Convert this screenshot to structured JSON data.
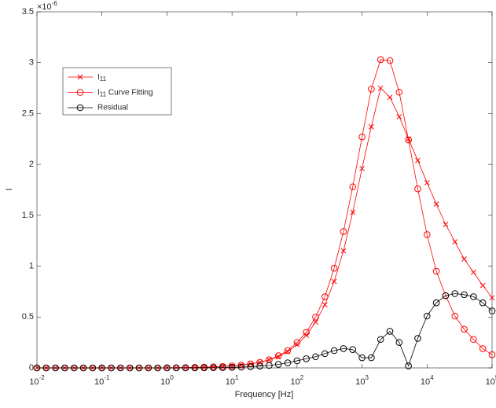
{
  "chart_data": {
    "type": "line",
    "xlabel": "Frequency [Hz]",
    "ylabel": "I",
    "y_multiplier": "×10",
    "y_multiplier_exponent": "-6",
    "xscale": "log",
    "xlim": [
      0.01,
      100000
    ],
    "xticks": [
      {
        "value": 0.01,
        "label": "10^-2"
      },
      {
        "value": 0.1,
        "label": "10^-1"
      },
      {
        "value": 1,
        "label": "10^0"
      },
      {
        "value": 10,
        "label": "10^1"
      },
      {
        "value": 100,
        "label": "10^2"
      },
      {
        "value": 1000,
        "label": "10^3"
      },
      {
        "value": 10000,
        "label": "10^4"
      },
      {
        "value": 100000,
        "label": "10^5"
      }
    ],
    "ylim": [
      0,
      3.5
    ],
    "yticks": [
      0,
      0.5,
      1,
      1.5,
      2,
      2.5,
      3,
      3.5
    ],
    "legend": "upper left",
    "x": [
      0.01,
      0.01389,
      0.01931,
      0.02683,
      0.03728,
      0.05179,
      0.07197,
      0.1,
      0.1389,
      0.1931,
      0.2683,
      0.3728,
      0.5179,
      0.7197,
      1,
      1.389,
      1.931,
      2.683,
      3.728,
      5.179,
      7.197,
      10,
      13.89,
      19.31,
      26.83,
      37.28,
      51.79,
      71.97,
      100,
      138.9,
      193.1,
      268.3,
      372.8,
      517.9,
      719.7,
      1000,
      1389,
      1931,
      2683,
      3728,
      5179,
      7197,
      10000,
      13890,
      19310,
      26830,
      37280,
      51790,
      71970,
      100000
    ],
    "series": [
      {
        "name": "I_11",
        "color": "#ff0000",
        "marker": "x",
        "values": [
          0,
          0,
          0,
          0,
          0,
          0,
          0,
          0,
          0,
          0,
          0,
          0,
          0,
          0,
          0.001,
          0.002,
          0.003,
          0.005,
          0.007,
          0.01,
          0.014,
          0.02,
          0.028,
          0.04,
          0.055,
          0.08,
          0.11,
          0.16,
          0.23,
          0.32,
          0.45,
          0.62,
          0.85,
          1.15,
          1.53,
          1.96,
          2.37,
          2.75,
          2.66,
          2.47,
          2.25,
          2.04,
          1.82,
          1.61,
          1.41,
          1.24,
          1.07,
          0.94,
          0.81,
          0.69
        ]
      },
      {
        "name": "I_11 Curve Fitting",
        "color": "#ff0000",
        "marker": "o",
        "values": [
          0,
          0,
          0,
          0,
          0,
          0,
          0,
          0,
          0,
          0,
          0,
          0,
          0,
          0,
          0.001,
          0.002,
          0.003,
          0.005,
          0.007,
          0.01,
          0.014,
          0.02,
          0.028,
          0.04,
          0.055,
          0.08,
          0.12,
          0.17,
          0.25,
          0.35,
          0.5,
          0.7,
          0.98,
          1.34,
          1.78,
          2.27,
          2.74,
          3.03,
          3.02,
          2.71,
          2.24,
          1.76,
          1.31,
          0.95,
          0.71,
          0.51,
          0.38,
          0.28,
          0.19,
          0.13
        ]
      },
      {
        "name": "Residual",
        "color": "#000000",
        "marker": "o",
        "values": [
          0,
          0,
          0,
          0,
          0,
          0,
          0,
          0,
          0,
          0,
          0,
          0,
          0,
          0,
          0,
          0,
          0,
          0,
          0.001,
          0.002,
          0.003,
          0.005,
          0.008,
          0.012,
          0.018,
          0.025,
          0.035,
          0.05,
          0.07,
          0.09,
          0.11,
          0.14,
          0.17,
          0.19,
          0.18,
          0.1,
          0.1,
          0.28,
          0.36,
          0.25,
          0.02,
          0.29,
          0.51,
          0.64,
          0.71,
          0.73,
          0.72,
          0.7,
          0.64,
          0.56
        ]
      }
    ]
  }
}
